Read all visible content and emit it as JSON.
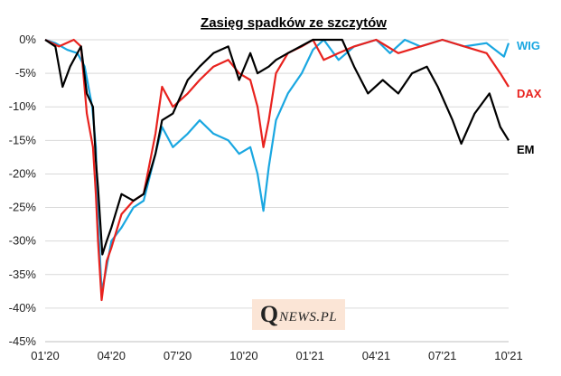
{
  "watermark": {
    "q": "Q",
    "text": "NEWS.PL"
  },
  "chart_data": {
    "type": "line",
    "title": "Zasięg spadków ze szczytów",
    "xlabel": "",
    "ylabel": "",
    "x_ticks": [
      "01'20",
      "04'20",
      "07'20",
      "10'20",
      "01'21",
      "04'21",
      "07'21",
      "10'21"
    ],
    "y_ticks": [
      "0%",
      "-5%",
      "-10%",
      "-15%",
      "-20%",
      "-25%",
      "-30%",
      "-35%",
      "-40%",
      "-45%"
    ],
    "ylim": [
      -45,
      0
    ],
    "xlim": [
      "2020-01",
      "2021-10"
    ],
    "grid": "horizontal",
    "legend": "inline labels at right end of lines",
    "series": [
      {
        "name": "WIG",
        "color": "#1aa7e1",
        "points": [
          [
            "2020-01",
            0
          ],
          [
            "2020-01-15",
            -0.5
          ],
          [
            "2020-02",
            -1.5
          ],
          [
            "2020-02-15",
            -2.0
          ],
          [
            "2020-02-25",
            -4.0
          ],
          [
            "2020-03-05",
            -10.0
          ],
          [
            "2020-03-10",
            -16.0
          ],
          [
            "2020-03-13",
            -27.0
          ],
          [
            "2020-03-16",
            -33.0
          ],
          [
            "2020-03-18",
            -37.5
          ],
          [
            "2020-03-23",
            -35.0
          ],
          [
            "2020-04-01",
            -30.0
          ],
          [
            "2020-04-15",
            -28.0
          ],
          [
            "2020-05-01",
            -25.0
          ],
          [
            "2020-05-15",
            -24.0
          ],
          [
            "2020-06-01",
            -17.0
          ],
          [
            "2020-06-10",
            -13.0
          ],
          [
            "2020-06-25",
            -16.0
          ],
          [
            "2020-07-15",
            -14.0
          ],
          [
            "2020-08-01",
            -12.0
          ],
          [
            "2020-08-20",
            -14.0
          ],
          [
            "2020-09-10",
            -15.0
          ],
          [
            "2020-09-25",
            -17.0
          ],
          [
            "2020-10-10",
            -16.0
          ],
          [
            "2020-10-20",
            -20.0
          ],
          [
            "2020-10-28",
            -25.5
          ],
          [
            "2020-11-05",
            -19.0
          ],
          [
            "2020-11-15",
            -12.0
          ],
          [
            "2020-12-01",
            -8.0
          ],
          [
            "2020-12-20",
            -5.0
          ],
          [
            "2021-01-05",
            -1.5
          ],
          [
            "2021-01-20",
            0
          ],
          [
            "2021-02-10",
            -3.0
          ],
          [
            "2021-03-01",
            -1.0
          ],
          [
            "2021-04-01",
            0
          ],
          [
            "2021-04-20",
            -2.0
          ],
          [
            "2021-05-10",
            0
          ],
          [
            "2021-06-01",
            -1.0
          ],
          [
            "2021-07-01",
            0
          ],
          [
            "2021-08-01",
            -1.0
          ],
          [
            "2021-09-01",
            -0.5
          ],
          [
            "2021-09-25",
            -2.5
          ],
          [
            "2021-10-01",
            -0.5
          ]
        ]
      },
      {
        "name": "DAX",
        "color": "#e8221e",
        "points": [
          [
            "2020-01",
            0
          ],
          [
            "2020-01-20",
            -1.0
          ],
          [
            "2020-02-10",
            0
          ],
          [
            "2020-02-20",
            -1.0
          ],
          [
            "2020-02-28",
            -11.0
          ],
          [
            "2020-03-06",
            -16.0
          ],
          [
            "2020-03-10",
            -23.0
          ],
          [
            "2020-03-13",
            -30.0
          ],
          [
            "2020-03-18",
            -38.8
          ],
          [
            "2020-03-25",
            -33.0
          ],
          [
            "2020-04-01",
            -31.0
          ],
          [
            "2020-04-15",
            -26.0
          ],
          [
            "2020-05-01",
            -24.0
          ],
          [
            "2020-05-15",
            -23.0
          ],
          [
            "2020-06-01",
            -14.0
          ],
          [
            "2020-06-10",
            -7.0
          ],
          [
            "2020-06-25",
            -10.0
          ],
          [
            "2020-07-15",
            -8.0
          ],
          [
            "2020-08-01",
            -6.0
          ],
          [
            "2020-08-20",
            -4.0
          ],
          [
            "2020-09-10",
            -3.0
          ],
          [
            "2020-09-25",
            -5.0
          ],
          [
            "2020-10-10",
            -6.0
          ],
          [
            "2020-10-20",
            -10.0
          ],
          [
            "2020-10-28",
            -16.0
          ],
          [
            "2020-11-05",
            -12.0
          ],
          [
            "2020-11-15",
            -5.0
          ],
          [
            "2020-12-01",
            -2.0
          ],
          [
            "2020-12-20",
            -1.0
          ],
          [
            "2021-01-05",
            0
          ],
          [
            "2021-01-20",
            -3.0
          ],
          [
            "2021-02-10",
            -2.0
          ],
          [
            "2021-03-01",
            -1.0
          ],
          [
            "2021-04-01",
            0
          ],
          [
            "2021-05-01",
            -2.0
          ],
          [
            "2021-06-01",
            -1.0
          ],
          [
            "2021-07-01",
            0
          ],
          [
            "2021-08-01",
            -1.0
          ],
          [
            "2021-09-01",
            -2.0
          ],
          [
            "2021-09-20",
            -5.0
          ],
          [
            "2021-10-01",
            -7.0
          ]
        ]
      },
      {
        "name": "EM",
        "color": "#000000",
        "points": [
          [
            "2020-01",
            0
          ],
          [
            "2020-01-15",
            -1.0
          ],
          [
            "2020-01-25",
            -7.0
          ],
          [
            "2020-02-05",
            -4.0
          ],
          [
            "2020-02-20",
            -1.0
          ],
          [
            "2020-02-28",
            -8.0
          ],
          [
            "2020-03-06",
            -10.0
          ],
          [
            "2020-03-10",
            -18.0
          ],
          [
            "2020-03-13",
            -22.0
          ],
          [
            "2020-03-19",
            -32.0
          ],
          [
            "2020-03-25",
            -30.0
          ],
          [
            "2020-04-01",
            -28.0
          ],
          [
            "2020-04-15",
            -23.0
          ],
          [
            "2020-05-01",
            -24.0
          ],
          [
            "2020-05-15",
            -23.0
          ],
          [
            "2020-06-01",
            -17.0
          ],
          [
            "2020-06-10",
            -12.0
          ],
          [
            "2020-06-25",
            -11.0
          ],
          [
            "2020-07-15",
            -6.0
          ],
          [
            "2020-08-01",
            -4.0
          ],
          [
            "2020-08-20",
            -2.0
          ],
          [
            "2020-09-10",
            -1.0
          ],
          [
            "2020-09-25",
            -6.0
          ],
          [
            "2020-10-10",
            -2.0
          ],
          [
            "2020-10-20",
            -5.0
          ],
          [
            "2020-11-05",
            -4.0
          ],
          [
            "2020-11-15",
            -3.0
          ],
          [
            "2020-12-01",
            -2.0
          ],
          [
            "2021-01-05",
            0
          ],
          [
            "2021-02-15",
            0
          ],
          [
            "2021-03-01",
            -4.0
          ],
          [
            "2021-03-20",
            -8.0
          ],
          [
            "2021-04-10",
            -6.0
          ],
          [
            "2021-05-01",
            -8.0
          ],
          [
            "2021-05-20",
            -5.0
          ],
          [
            "2021-06-10",
            -4.0
          ],
          [
            "2021-06-25",
            -7.0
          ],
          [
            "2021-07-15",
            -12.0
          ],
          [
            "2021-07-27",
            -15.5
          ],
          [
            "2021-08-15",
            -11.0
          ],
          [
            "2021-09-05",
            -8.0
          ],
          [
            "2021-09-20",
            -13.0
          ],
          [
            "2021-10-01",
            -15.0
          ]
        ]
      }
    ]
  }
}
